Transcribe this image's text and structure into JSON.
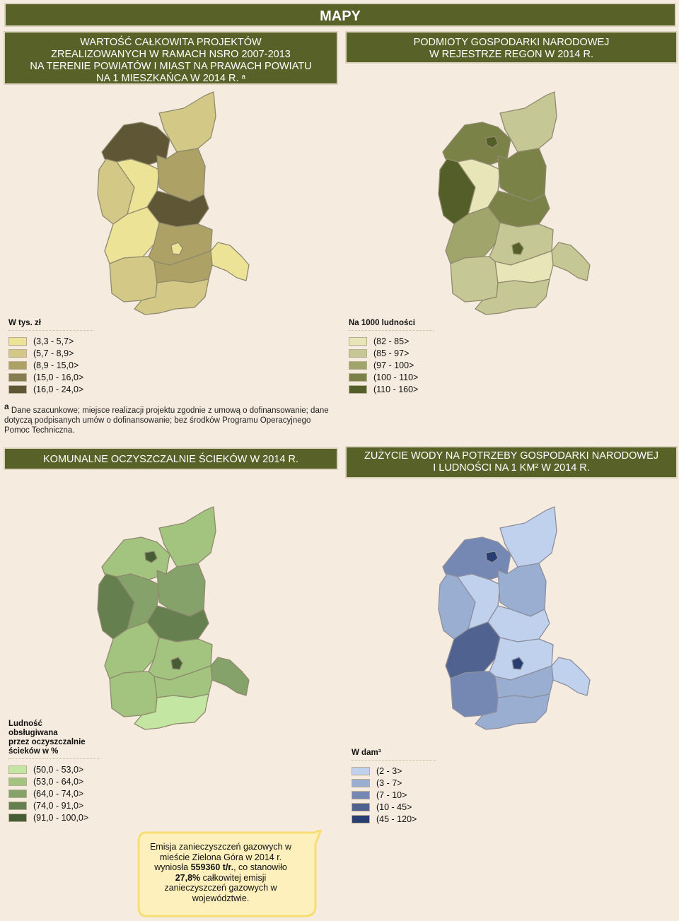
{
  "title": "MAPY",
  "maps": [
    {
      "id": "projects",
      "heading_lines": [
        "WARTOŚĆ CAŁKOWITA PROJEKTÓW",
        "ZREALIZOWANYCH W RAMACH NSRO 2007-2013",
        "NA TERENIE POWIATÓW I MIAST NA PRAWACH POWIATU",
        "NA 1 MIESZKAŃCA W 2014 R. ᵃ"
      ],
      "legend_title": "W tys. zł",
      "legend": [
        {
          "label": "(3,3 - 5,7>",
          "color": "#ede396"
        },
        {
          "label": "(5,7 - 8,9>",
          "color": "#d3c886"
        },
        {
          "label": "(8,9 - 15,0>",
          "color": "#ada166"
        },
        {
          "label": "(15,0 - 16,0>",
          "color": "#867d50"
        },
        {
          "label": "(16,0 - 24,0>",
          "color": "#5e5635"
        }
      ]
    },
    {
      "id": "regon",
      "heading_lines": [
        "PODMIOTY GOSPODARKI NARODOWEJ",
        "W REJESTRZE REGON W 2014 R."
      ],
      "legend_title": "Na 1000 ludności",
      "legend": [
        {
          "label": "(82 - 85>",
          "color": "#e8e6b8"
        },
        {
          "label": "(85 - 97>",
          "color": "#c5c794"
        },
        {
          "label": "(97 - 100>",
          "color": "#a0a56c"
        },
        {
          "label": "(100 - 110>",
          "color": "#7a8248"
        },
        {
          "label": "(110 - 160>",
          "color": "#545e28"
        }
      ]
    },
    {
      "id": "sewage",
      "heading_lines": [
        "KOMUNALNE OCZYSZCZALNIE ŚCIEKÓW W 2014 R."
      ],
      "legend_title_lines": [
        "Ludność",
        "obsługiwana",
        "przez oczyszczalnie",
        "ścieków w %"
      ],
      "legend": [
        {
          "label": "(50,0 - 53,0>",
          "color": "#c3e6a3"
        },
        {
          "label": "(53,0 - 64,0>",
          "color": "#a2c47f"
        },
        {
          "label": "(64,0 - 74,0>",
          "color": "#85a26a"
        },
        {
          "label": "(74,0 - 91,0>",
          "color": "#667f4f"
        },
        {
          "label": "(91,0 - 100,0>",
          "color": "#455c35"
        }
      ]
    },
    {
      "id": "water",
      "heading_lines": [
        "ZUŻYCIE WODY NA POTRZEBY GOSPODARKI NARODOWEJ",
        "I LUDNOŚCI NA 1 KM² W 2014 R."
      ],
      "legend_title": "W dam³",
      "legend": [
        {
          "label": "(2 - 3>",
          "color": "#bfd1ec"
        },
        {
          "label": "(3 - 7>",
          "color": "#9aaed2"
        },
        {
          "label": "(7 - 10>",
          "color": "#7488b3"
        },
        {
          "label": "(10 - 45>",
          "color": "#4f6290"
        },
        {
          "label": "(45 - 120>",
          "color": "#283d70"
        }
      ]
    }
  ],
  "footnote": {
    "marker": "a",
    "text": "Dane szacunkowe; miejsce realizacji projektu zgodnie z umową o dofinansowanie; dane dotyczą podpisanych umów o dofinansowanie; bez środków Programu Operacyjnego Pomoc Techniczna."
  },
  "callout": {
    "line1": "Emisja zanieczyszczeń gazowych w",
    "line2": "mieście Zielona Góra w 2014 r.",
    "line3_pre": "wyniosła ",
    "line3_bold": "559360 t/r.",
    "line3_post": ", co stanowiło",
    "line4_bold": "27,8%",
    "line4_post": " całkowitej emisji",
    "line5": "zanieczyszczeń gazowych w",
    "line6": "województwie."
  }
}
